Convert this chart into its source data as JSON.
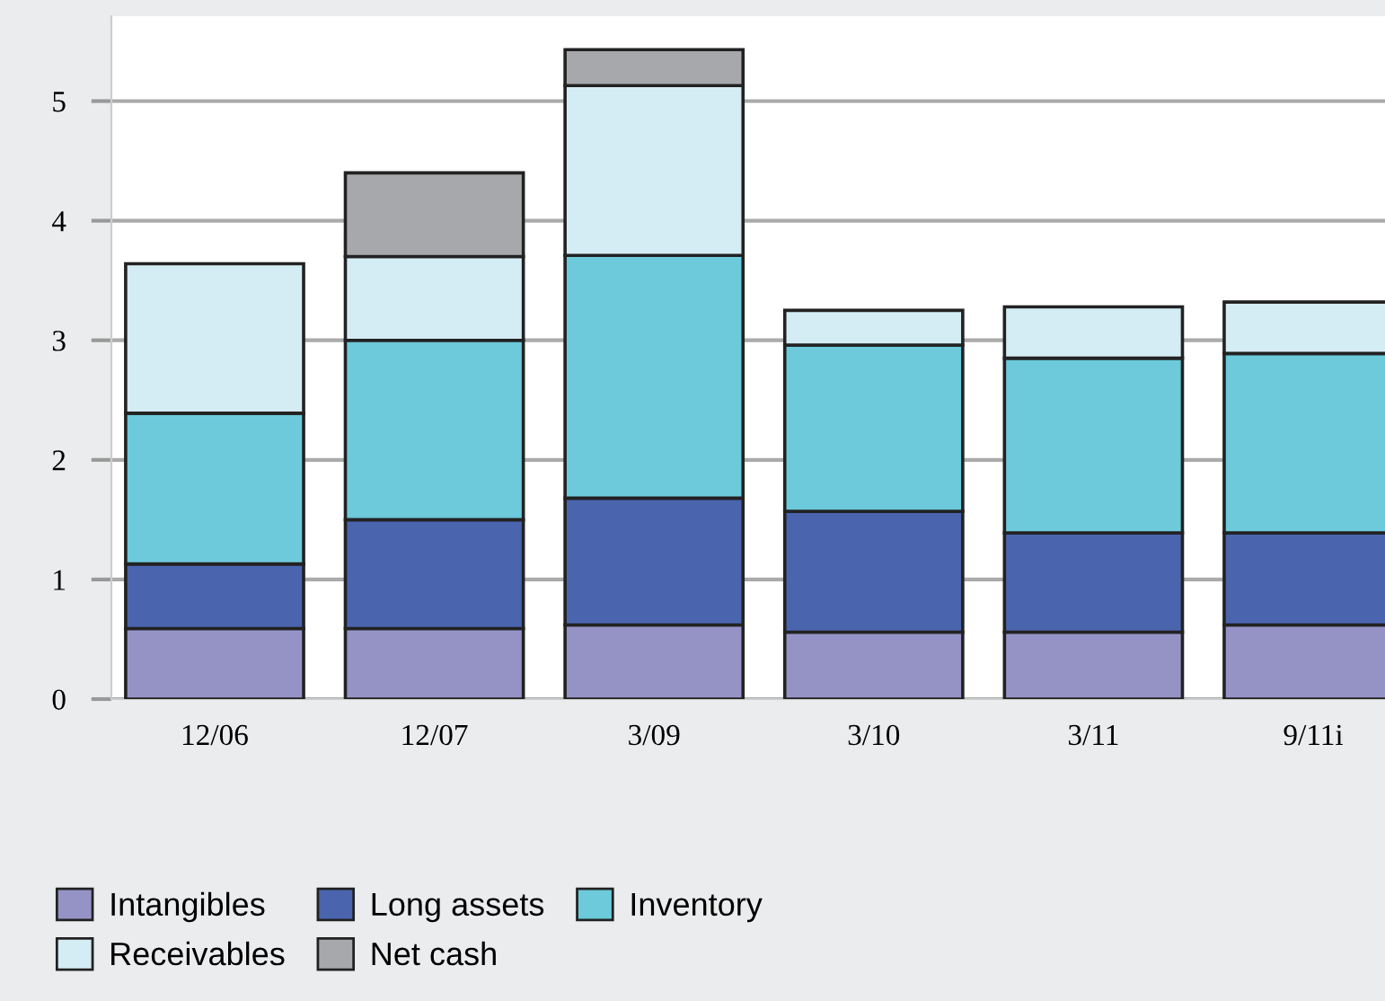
{
  "chart_data": {
    "type": "bar",
    "stacked": true,
    "categories": [
      "12/06",
      "12/07",
      "3/09",
      "3/10",
      "3/11",
      "9/11i"
    ],
    "series": [
      {
        "name": "Intangibles",
        "color": "#9593c6",
        "values": [
          0.59,
          0.59,
          0.62,
          0.56,
          0.56,
          0.62
        ]
      },
      {
        "name": "Long assets",
        "color": "#4a65ae",
        "values": [
          0.54,
          0.91,
          1.06,
          1.01,
          0.83,
          0.77
        ]
      },
      {
        "name": "Inventory",
        "color": "#6ccadb",
        "values": [
          1.26,
          1.5,
          2.03,
          1.39,
          1.46,
          1.5
        ]
      },
      {
        "name": "Receivables",
        "color": "#d4ecf4",
        "values": [
          1.25,
          0.7,
          1.42,
          0.29,
          0.43,
          0.43
        ]
      },
      {
        "name": "Net cash",
        "color": "#a7a8ab",
        "values": [
          null,
          0.7,
          0.3,
          null,
          null,
          null
        ]
      }
    ],
    "ylim": [
      0,
      5.71
    ],
    "yticks": [
      0,
      1,
      2,
      3,
      4,
      5
    ],
    "grid": "y",
    "legend": "bottom"
  }
}
